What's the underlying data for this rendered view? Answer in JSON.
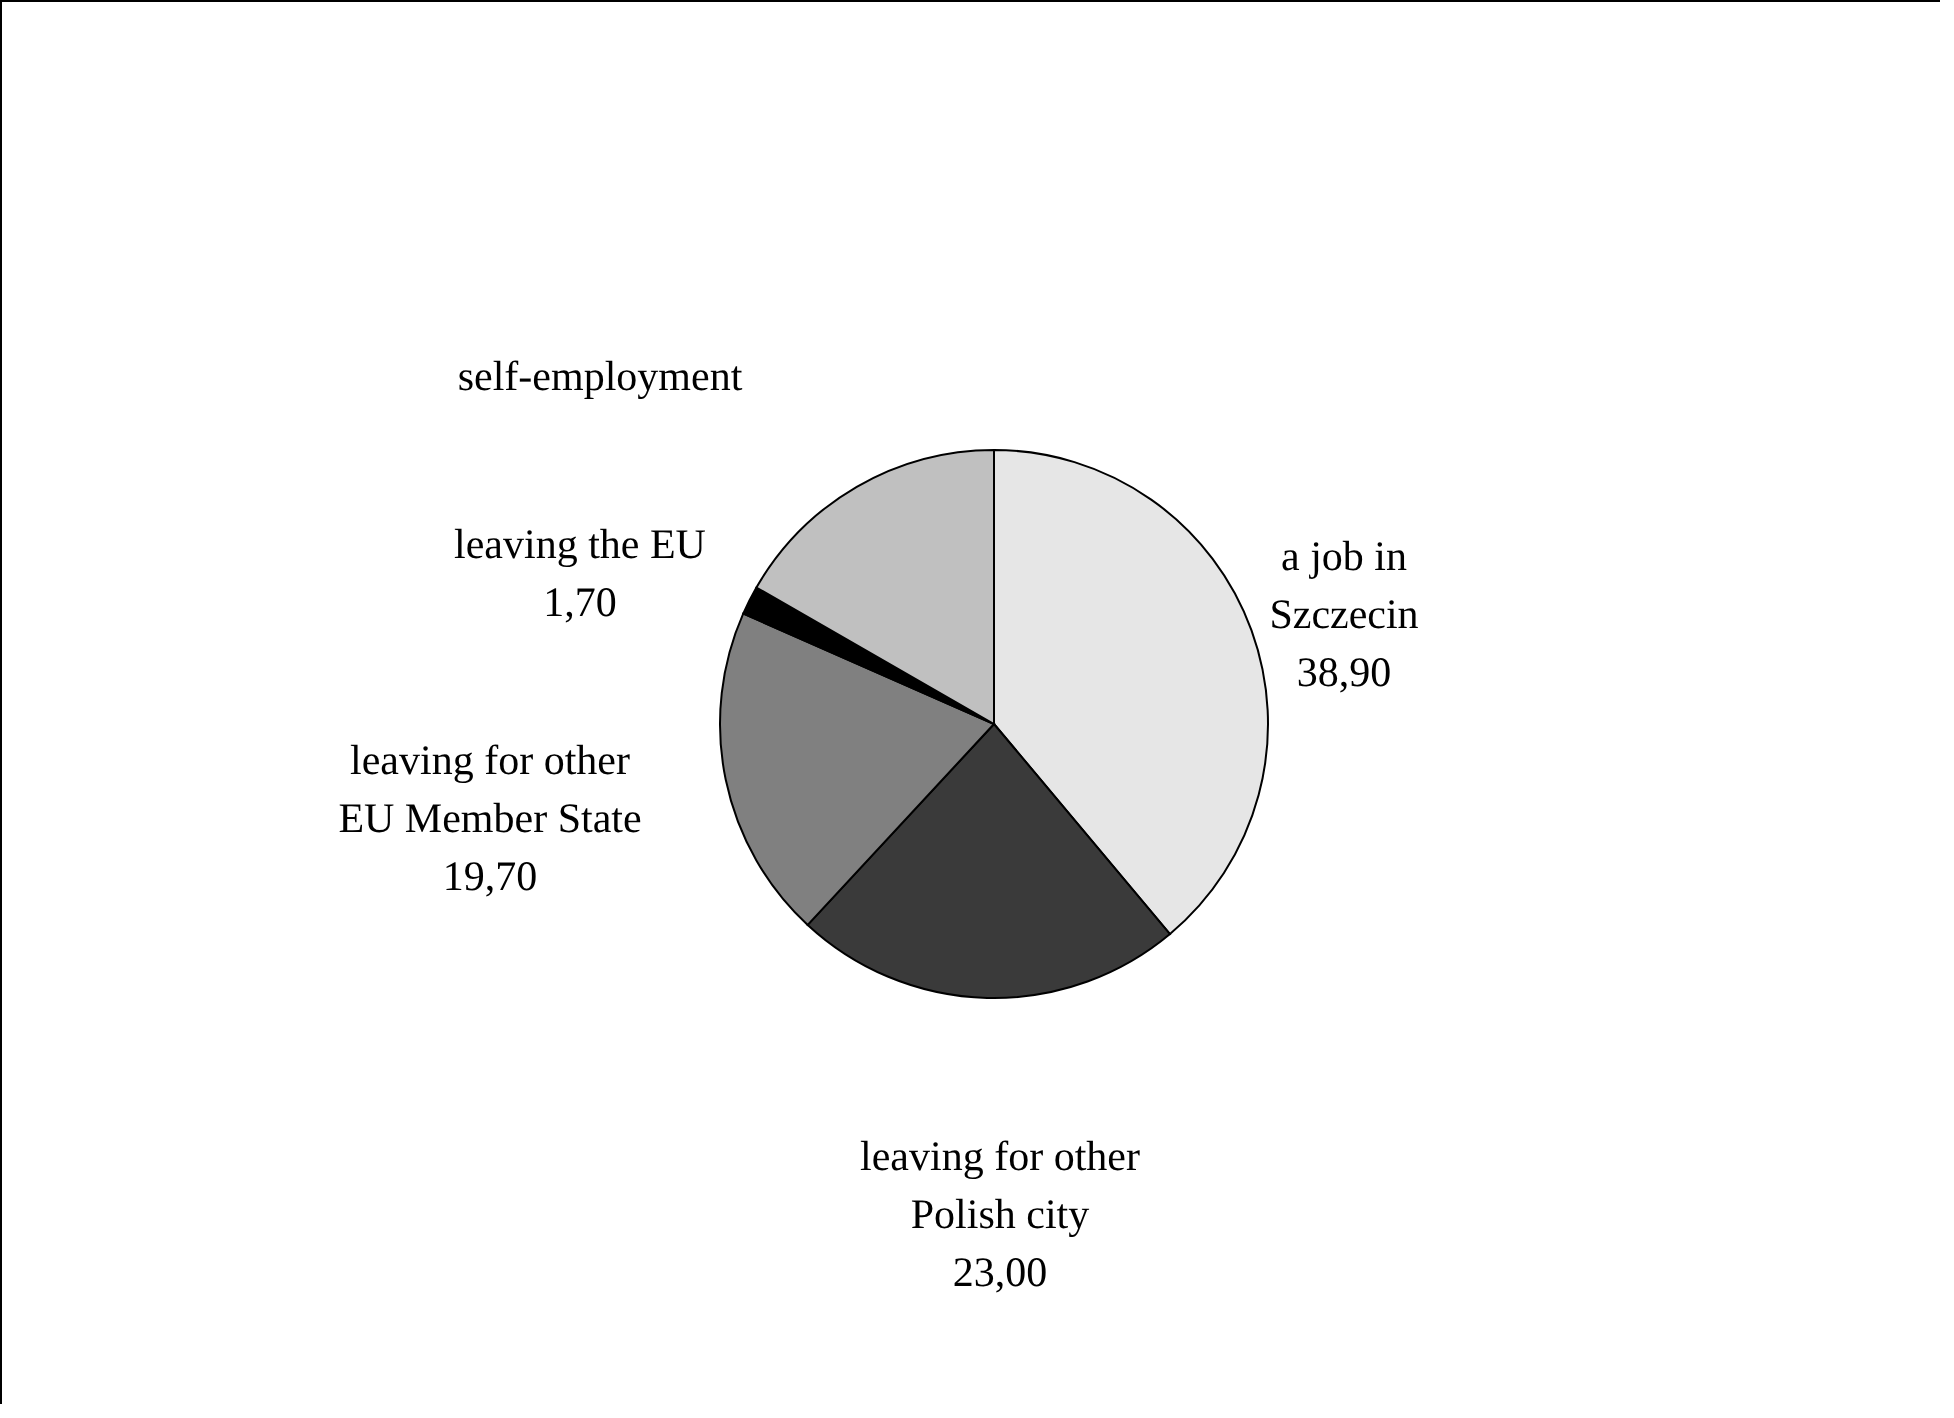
{
  "chart_data": {
    "type": "pie",
    "categories": [
      "a job in Szczecin",
      "leaving for other Polish city",
      "leaving for other EU Member State",
      "leaving the EU",
      "self-employment"
    ],
    "values": [
      38.9,
      23.0,
      19.7,
      1.7,
      16.7
    ],
    "value_labels": [
      "38,90",
      "23,00",
      "19,70",
      "1,70",
      null
    ],
    "colors": [
      "#e6e6e6",
      "#3a3a3a",
      "#808080",
      "#000000",
      "#c0c0c0"
    ]
  }
}
